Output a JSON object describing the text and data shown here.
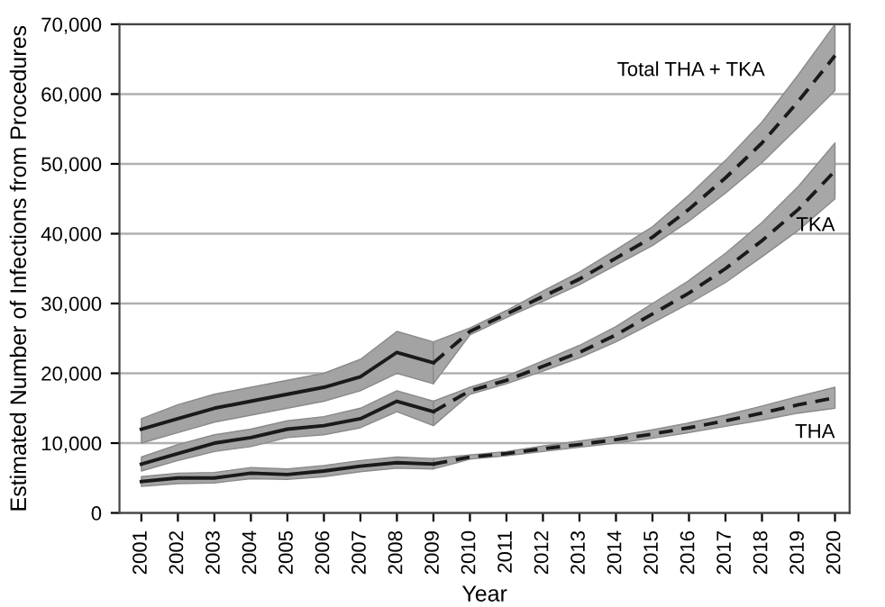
{
  "chart_data": {
    "type": "line",
    "xlabel": "Year",
    "ylabel": "Estimated Number of Infections from Procedures",
    "categories": [
      "2001",
      "2002",
      "2003",
      "2004",
      "2005",
      "2006",
      "2007",
      "2008",
      "2009",
      "2010",
      "2011",
      "2012",
      "2013",
      "2014",
      "2015",
      "2016",
      "2017",
      "2018",
      "2019",
      "2020"
    ],
    "ylim": [
      0,
      70000
    ],
    "yticks": [
      {
        "value": 0,
        "label": "0"
      },
      {
        "value": 10000,
        "label": "10,000"
      },
      {
        "value": 20000,
        "label": "20,000"
      },
      {
        "value": 30000,
        "label": "30,000"
      },
      {
        "value": 40000,
        "label": "40,000"
      },
      {
        "value": 50000,
        "label": "50,000"
      },
      {
        "value": 60000,
        "label": "60,000"
      },
      {
        "value": 70000,
        "label": "70,000"
      }
    ],
    "grid": "y",
    "series": [
      {
        "color": "#1a1a1a",
        "line_style": "solid",
        "values": [
          12000,
          13500,
          15000,
          16000,
          17000,
          18000,
          19500,
          23000,
          21500,
          null,
          null,
          null,
          null,
          null,
          null,
          null,
          null,
          null,
          null,
          null
        ],
        "lower": [
          10000,
          11500,
          13000,
          14000,
          15000,
          16000,
          17500,
          20000,
          18500,
          null,
          null,
          null,
          null,
          null,
          null,
          null,
          null,
          null,
          null,
          null
        ],
        "upper": [
          13500,
          15500,
          17000,
          18000,
          19000,
          20000,
          22000,
          26000,
          24500,
          null,
          null,
          null,
          null,
          null,
          null,
          null,
          null,
          null,
          null,
          null
        ]
      },
      {
        "color": "#1a1a1a",
        "line_style": "solid",
        "values": [
          7000,
          8500,
          10000,
          10800,
          12000,
          12500,
          13500,
          16000,
          14500,
          null,
          null,
          null,
          null,
          null,
          null,
          null,
          null,
          null,
          null,
          null
        ],
        "lower": [
          6000,
          7500,
          8800,
          9500,
          10800,
          11200,
          12200,
          14500,
          12500,
          null,
          null,
          null,
          null,
          null,
          null,
          null,
          null,
          null,
          null,
          null
        ],
        "upper": [
          8000,
          9800,
          11200,
          12000,
          13200,
          13800,
          15000,
          17500,
          16000,
          null,
          null,
          null,
          null,
          null,
          null,
          null,
          null,
          null,
          null,
          null
        ]
      },
      {
        "color": "#1a1a1a",
        "line_style": "solid",
        "values": [
          4500,
          5000,
          5000,
          5700,
          5500,
          6000,
          6700,
          7200,
          7000,
          null,
          null,
          null,
          null,
          null,
          null,
          null,
          null,
          null,
          null,
          null
        ],
        "lower": [
          3800,
          4200,
          4300,
          4900,
          4800,
          5200,
          5900,
          6400,
          6300,
          null,
          null,
          null,
          null,
          null,
          null,
          null,
          null,
          null,
          null,
          null
        ],
        "upper": [
          5200,
          5700,
          5800,
          6500,
          6300,
          6800,
          7500,
          8000,
          7800,
          null,
          null,
          null,
          null,
          null,
          null,
          null,
          null,
          null,
          null,
          null
        ]
      },
      {
        "name": "Total THA + TKA",
        "color": "#1a1a1a",
        "line_style": "dashed",
        "values": [
          null,
          null,
          null,
          null,
          null,
          null,
          null,
          null,
          21500,
          26000,
          28500,
          31000,
          33500,
          36500,
          39500,
          43500,
          48000,
          53000,
          59000,
          65500
        ],
        "lower": [
          null,
          null,
          null,
          null,
          null,
          null,
          null,
          null,
          18500,
          25500,
          28000,
          30300,
          32700,
          35500,
          38300,
          41800,
          45800,
          50200,
          55300,
          60500
        ],
        "upper": [
          null,
          null,
          null,
          null,
          null,
          null,
          null,
          null,
          24500,
          26500,
          29000,
          31800,
          34500,
          37700,
          41000,
          45500,
          50500,
          56000,
          62800,
          70000
        ]
      },
      {
        "name": "TKA",
        "color": "#1a1a1a",
        "line_style": "dashed",
        "values": [
          null,
          null,
          null,
          null,
          null,
          null,
          null,
          null,
          14500,
          17500,
          19000,
          21000,
          23000,
          25500,
          28500,
          31500,
          35000,
          39000,
          43500,
          49000
        ],
        "lower": [
          null,
          null,
          null,
          null,
          null,
          null,
          null,
          null,
          12500,
          17000,
          18500,
          20300,
          22200,
          24500,
          27200,
          30000,
          33000,
          36700,
          40500,
          45000
        ],
        "upper": [
          null,
          null,
          null,
          null,
          null,
          null,
          null,
          null,
          16000,
          18000,
          19600,
          21800,
          24000,
          26700,
          30000,
          33300,
          37200,
          41600,
          46800,
          53000
        ]
      },
      {
        "name": "THA",
        "color": "#1a1a1a",
        "line_style": "dashed",
        "values": [
          null,
          null,
          null,
          null,
          null,
          null,
          null,
          null,
          7000,
          8000,
          8500,
          9200,
          9800,
          10500,
          11300,
          12200,
          13200,
          14300,
          15500,
          16500
        ],
        "lower": [
          null,
          null,
          null,
          null,
          null,
          null,
          null,
          null,
          6300,
          7700,
          8200,
          8800,
          9400,
          10000,
          10700,
          11500,
          12400,
          13300,
          14300,
          15000
        ],
        "upper": [
          null,
          null,
          null,
          null,
          null,
          null,
          null,
          null,
          7800,
          8300,
          8800,
          9600,
          10300,
          11000,
          11900,
          12900,
          14000,
          15300,
          16700,
          18000
        ]
      }
    ]
  }
}
